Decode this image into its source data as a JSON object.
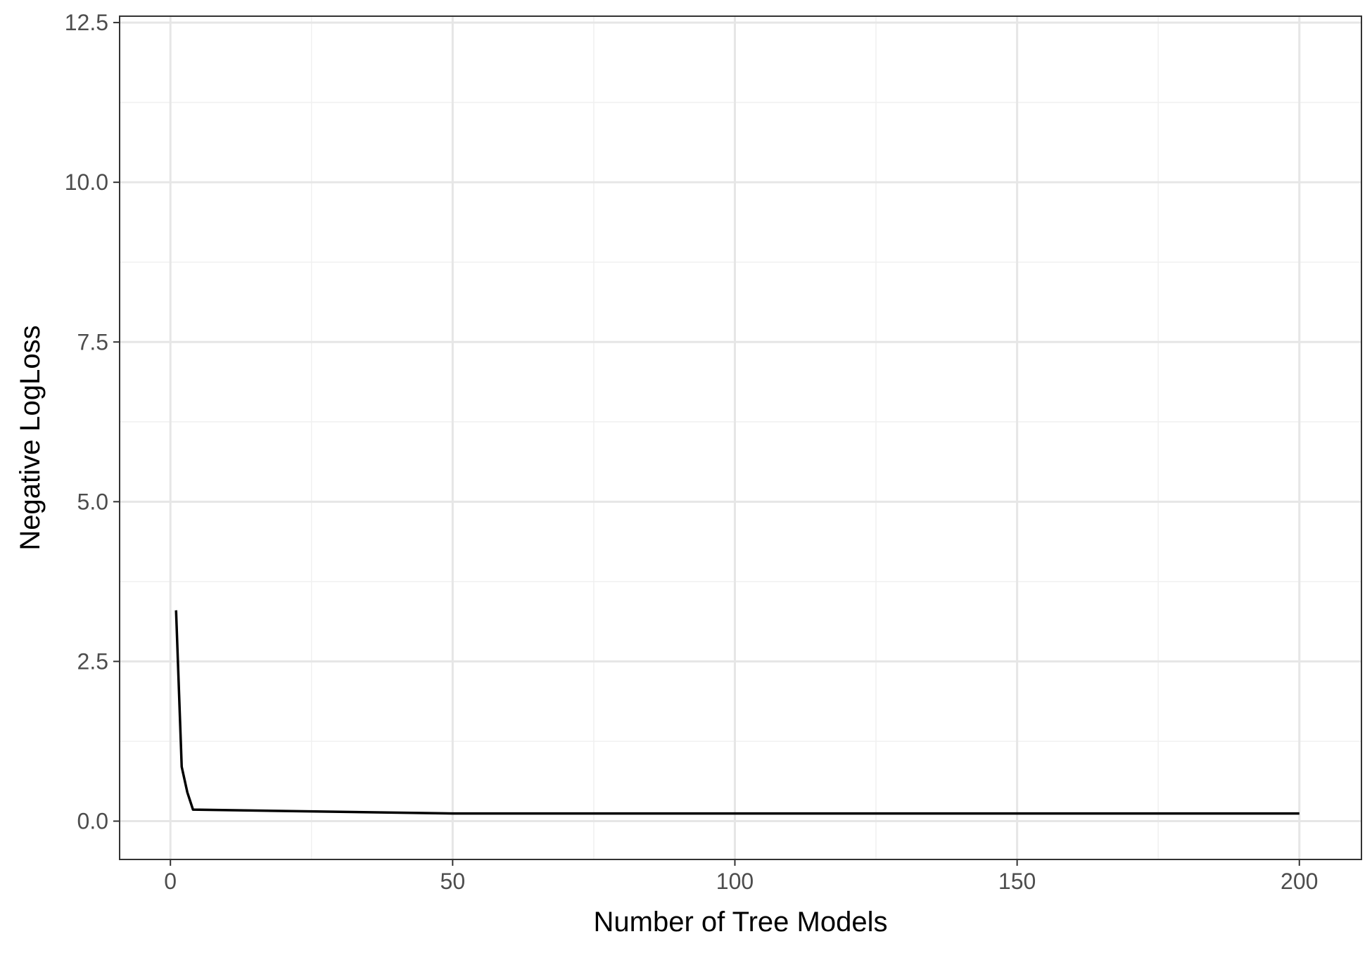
{
  "chart_data": {
    "type": "line",
    "title": "",
    "xlabel": "Number of Tree Models",
    "ylabel": "Negative LogLoss",
    "xlim": [
      -9,
      211
    ],
    "ylim": [
      -0.6,
      12.6
    ],
    "x_ticks": [
      0,
      50,
      100,
      150,
      200
    ],
    "x_tick_labels": [
      "0",
      "50",
      "100",
      "150",
      "200"
    ],
    "y_ticks": [
      0.0,
      2.5,
      5.0,
      7.5,
      10.0,
      12.5
    ],
    "y_tick_labels": [
      "0.0",
      "2.5",
      "5.0",
      "7.5",
      "10.0",
      "12.5"
    ],
    "grid": true,
    "legend": "none",
    "colors": {
      "line": "#000000",
      "grid_major": "#e6e6e6",
      "grid_minor": "#f0f0f0",
      "panel_border": "#333333",
      "tick_label": "#4d4d4d"
    },
    "series": [
      {
        "x": [
          1,
          2,
          3,
          4,
          50,
          100,
          150,
          200
        ],
        "y": [
          3.3,
          0.85,
          0.45,
          0.18,
          0.12,
          0.12,
          0.12,
          0.12
        ]
      }
    ]
  }
}
